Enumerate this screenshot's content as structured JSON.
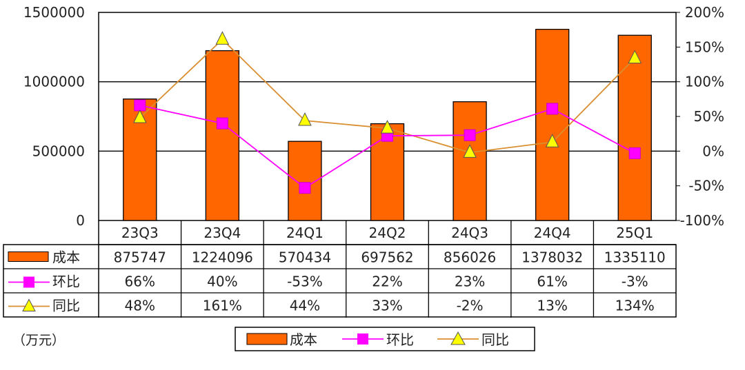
{
  "chart_data": {
    "type": "bar",
    "categories": [
      "23Q3",
      "23Q4",
      "24Q1",
      "24Q2",
      "24Q3",
      "24Q4",
      "25Q1"
    ],
    "unit_label": "（万元）",
    "left_axis": {
      "ylim": [
        0,
        1500000
      ],
      "ticks": [
        0,
        500000,
        1000000,
        1500000
      ],
      "tick_labels": [
        "0",
        "500000",
        "1000000",
        "1500000"
      ]
    },
    "right_axis": {
      "ylim": [
        -100,
        200
      ],
      "ticks": [
        -100,
        -50,
        0,
        50,
        100,
        150,
        200
      ],
      "tick_labels": [
        "-100%",
        "-50%",
        "0%",
        "50%",
        "100%",
        "150%",
        "200%"
      ]
    },
    "grid": "horizontal",
    "legend_position": "bottom",
    "series": [
      {
        "name": "成本",
        "type": "bar",
        "axis": "left",
        "color": "#FF6600",
        "values": [
          875747,
          1224096,
          570434,
          697562,
          856026,
          1378032,
          1335110
        ],
        "labels": [
          "875747",
          "1224096",
          "570434",
          "697562",
          "856026",
          "1378032",
          "1335110"
        ]
      },
      {
        "name": "环比",
        "type": "line",
        "axis": "right",
        "color": "#FF00FF",
        "marker": "square",
        "values": [
          66,
          40,
          -53,
          22,
          23,
          61,
          -3
        ],
        "labels": [
          "66%",
          "40%",
          "-53%",
          "22%",
          "23%",
          "61%",
          "-3%"
        ]
      },
      {
        "name": "同比",
        "type": "line",
        "axis": "right",
        "color": "#D98E2F",
        "marker": "triangle",
        "marker_color": "#FFFF00",
        "values": [
          48,
          161,
          44,
          33,
          -2,
          13,
          134
        ],
        "labels": [
          "48%",
          "161%",
          "44%",
          "33%",
          "-2%",
          "13%",
          "134%"
        ]
      }
    ]
  }
}
